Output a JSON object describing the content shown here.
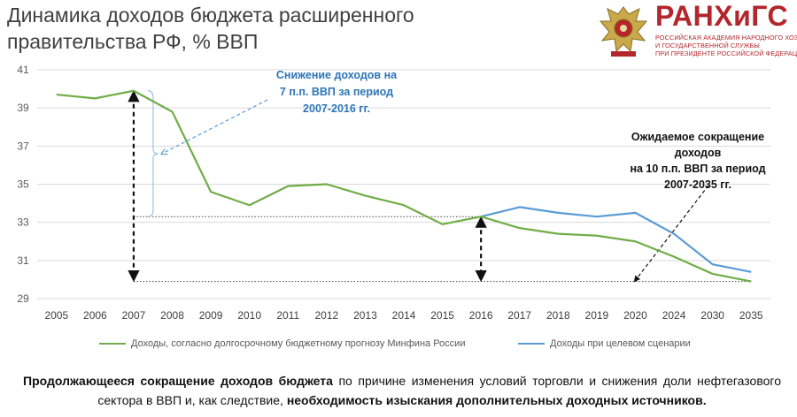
{
  "title": "Динамика доходов бюджета расширенного правительства РФ, % ВВП",
  "logo": {
    "name": "РАНХиГС",
    "line1": "РОССИЙСКАЯ АКАДЕМИЯ НАРОДНОГО ХОЗЯЙСТВА",
    "line2": "И ГОСУДАРСТВЕННОЙ СЛУЖБЫ",
    "line3": "ПРИ ПРЕЗИДЕНТЕ РОССИЙСКОЙ ФЕДЕРАЦИИ",
    "color": "#b3262b"
  },
  "annotations": {
    "left_line1": "Снижение доходов на",
    "left_line2": "7  п.п. ВВП за период",
    "left_line3": "2007-2016 гг.",
    "right_line1": "Ожидаемое сокращение",
    "right_line2": "доходов",
    "right_line3": "на 10 п.п. ВВП за период",
    "right_line4": "2007-2035 гг."
  },
  "bottom_text": {
    "bold1": "Продолжающееся сокращение доходов бюджета",
    "normal1": " по причине изменения условий торговли и снижения доли нефтегазового сектора в ВВП и, как следствие, ",
    "bold2": "необходимость изыскания дополнительных доходных источников."
  },
  "chart_data": {
    "type": "line",
    "categories": [
      "2005",
      "2006",
      "2007",
      "2008",
      "2009",
      "2010",
      "2011",
      "2012",
      "2013",
      "2014",
      "2015",
      "2016",
      "2017",
      "2018",
      "2019",
      "2020",
      "2024",
      "2030",
      "2035"
    ],
    "ylim": [
      29,
      41
    ],
    "yticks": [
      29,
      31,
      33,
      35,
      37,
      39,
      41
    ],
    "grid": true,
    "legend_position": "bottom",
    "series": [
      {
        "name": "Доходы, согласно долгосрочному бюджетному прогнозу Минфина России",
        "color": "#70ad47",
        "values": [
          39.7,
          39.5,
          39.9,
          38.8,
          34.6,
          33.9,
          34.9,
          35.0,
          34.4,
          33.9,
          32.9,
          33.3,
          32.7,
          32.4,
          32.3,
          32.0,
          31.2,
          30.3,
          29.9
        ]
      },
      {
        "name": "Доходы при целевом сценарии",
        "color": "#5b9bd5",
        "values": [
          null,
          null,
          null,
          null,
          null,
          null,
          null,
          null,
          null,
          null,
          null,
          33.3,
          33.8,
          33.5,
          33.3,
          33.5,
          32.4,
          30.8,
          30.4
        ]
      }
    ]
  }
}
